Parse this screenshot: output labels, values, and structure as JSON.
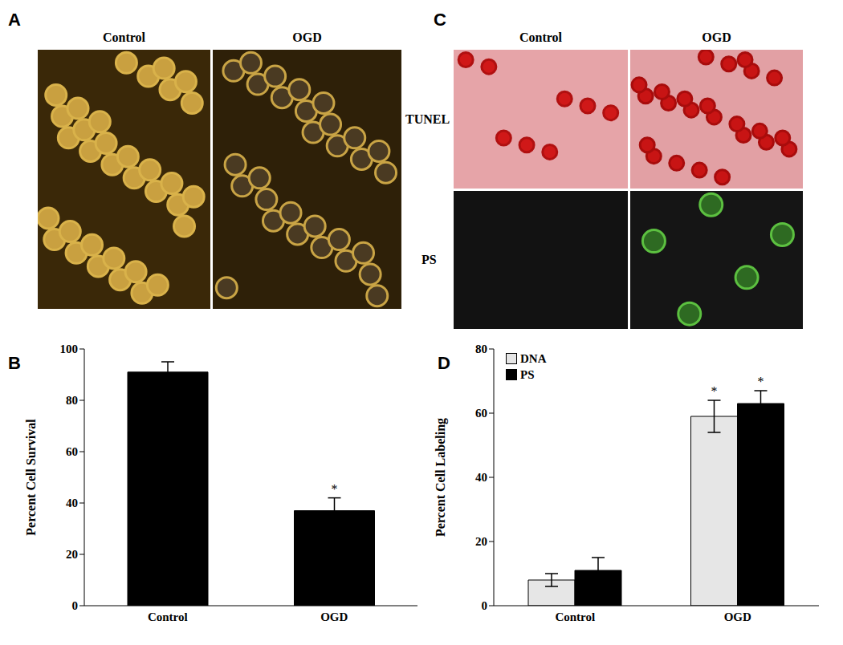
{
  "image_panels": [
    {
      "panel": "A",
      "columns": [
        "Control",
        "OGD"
      ]
    },
    {
      "panel": "C",
      "columns": [
        "Control",
        "OGD"
      ],
      "rows": [
        "TUNEL",
        "PS"
      ]
    }
  ],
  "chart_data": [
    {
      "panel": "B",
      "type": "bar",
      "categories": [
        "Control",
        "OGD"
      ],
      "values": [
        91,
        37
      ],
      "error": [
        4,
        5
      ],
      "color": "#000000",
      "ylabel": "Percent Cell Survival",
      "ylim": [
        0,
        100
      ],
      "yticks": [
        0,
        20,
        40,
        60,
        80,
        100
      ],
      "annotations": [
        {
          "text": "*",
          "category": "OGD"
        }
      ]
    },
    {
      "panel": "D",
      "type": "bar",
      "categories": [
        "Control",
        "OGD"
      ],
      "series": [
        {
          "name": "DNA",
          "color": "#e6e6e6",
          "values": [
            8,
            59
          ],
          "error": [
            2,
            5
          ]
        },
        {
          "name": "PS",
          "color": "#000000",
          "values": [
            11,
            63
          ],
          "error": [
            4,
            4
          ]
        }
      ],
      "ylabel": "Percent Cell Labeling",
      "ylim": [
        0,
        80
      ],
      "yticks": [
        0,
        20,
        40,
        60,
        80
      ],
      "legend": "upper left",
      "annotations": [
        {
          "text": "*",
          "category": "OGD",
          "series": "DNA"
        },
        {
          "text": "*",
          "category": "OGD",
          "series": "PS"
        }
      ]
    }
  ]
}
